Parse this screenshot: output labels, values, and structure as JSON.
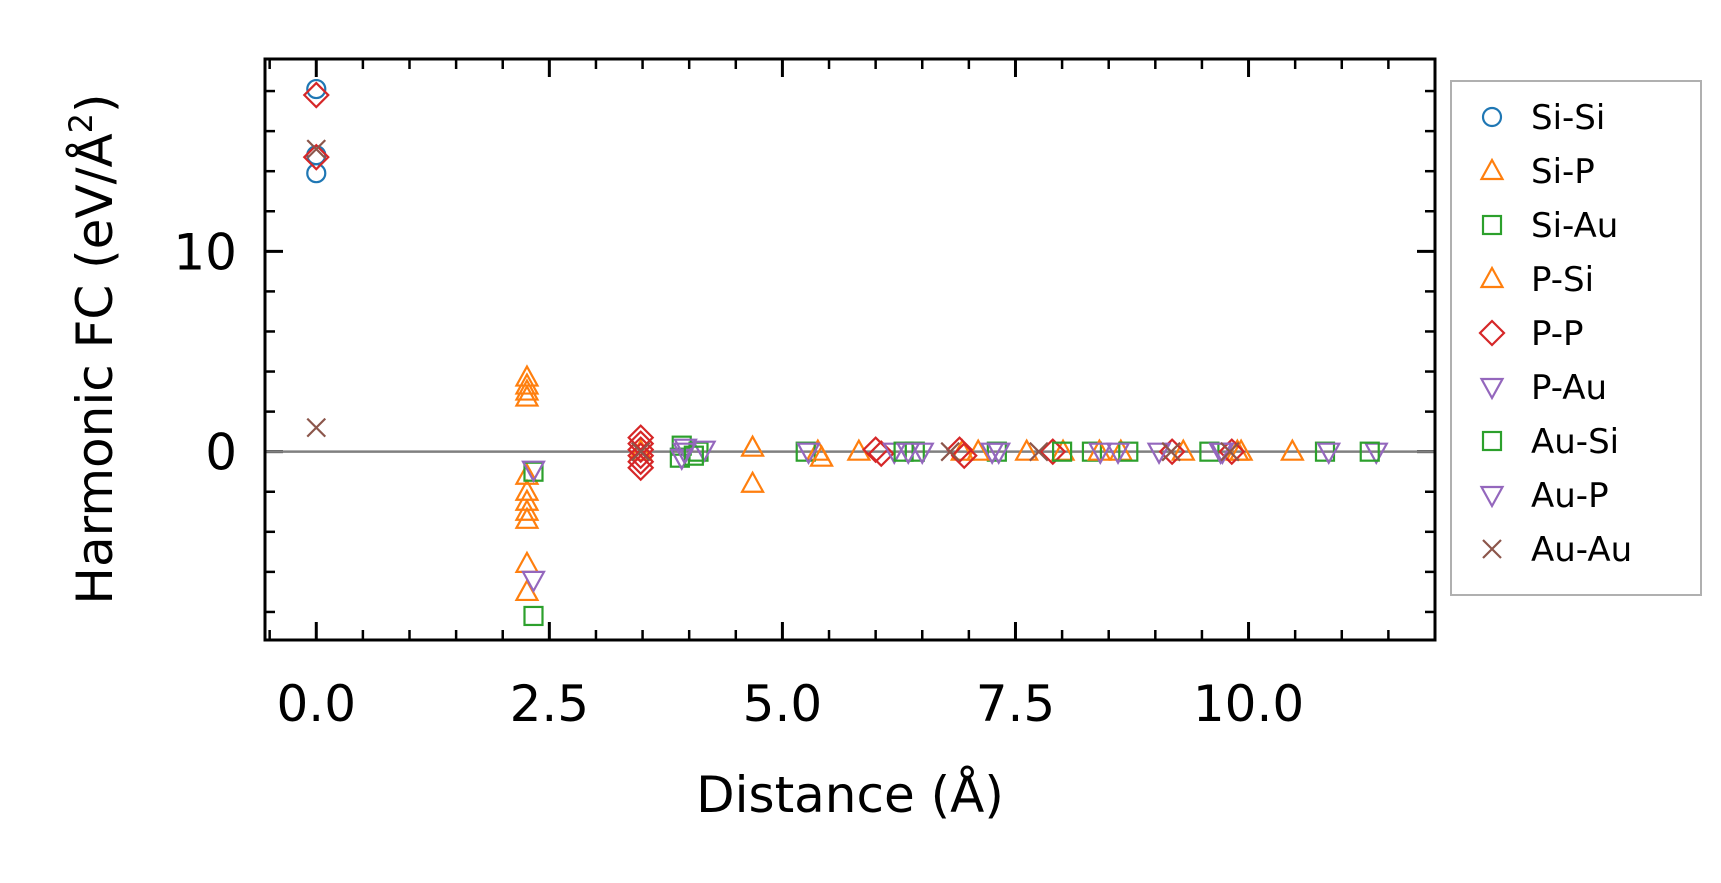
{
  "chart_data": {
    "type": "scatter",
    "title": "",
    "xlabel": "Distance (Å)",
    "ylabel": "Harmonic FC (eV/Å²)",
    "ylabel_parts": {
      "main": "Harmonic FC (eV/Å",
      "sup": "2",
      "end": ")"
    },
    "xlim": [
      -0.55,
      12.0
    ],
    "ylim": [
      -9.4,
      19.6
    ],
    "xticks": [
      0.0,
      2.5,
      5.0,
      7.5,
      10.0
    ],
    "xtick_labels": [
      "0.0",
      "2.5",
      "5.0",
      "7.5",
      "10.0"
    ],
    "yticks": [
      0,
      10
    ],
    "ytick_labels": [
      "0",
      "10"
    ],
    "x_minor_step": 0.5,
    "y_minor_step": 2,
    "zero_line": true,
    "grid": false,
    "legend_position": "right-outside",
    "series": [
      {
        "name": "Si-Si",
        "marker": "circle",
        "color": "#1f77b4",
        "points": [
          [
            0.0,
            18.1
          ],
          [
            0.0,
            13.9
          ],
          [
            0.0,
            14.8
          ]
        ]
      },
      {
        "name": "Si-P",
        "marker": "triangle-up",
        "color": "#ff7f0e",
        "points": [
          [
            2.26,
            3.7
          ],
          [
            2.26,
            3.3
          ],
          [
            2.26,
            3.0
          ],
          [
            2.26,
            2.7
          ],
          [
            2.26,
            -1.2
          ],
          [
            2.26,
            -2.0
          ],
          [
            2.26,
            -2.5
          ],
          [
            2.26,
            -3.0
          ],
          [
            2.26,
            -3.4
          ],
          [
            2.26,
            -5.6
          ],
          [
            2.26,
            -7.0
          ],
          [
            3.48,
            0.0
          ],
          [
            4.68,
            0.2
          ],
          [
            4.68,
            -1.6
          ],
          [
            5.38,
            0.0
          ],
          [
            5.82,
            0.0
          ],
          [
            6.93,
            0.0
          ],
          [
            7.62,
            0.0
          ],
          [
            8.01,
            0.0
          ],
          [
            8.63,
            0.0
          ],
          [
            9.88,
            0.0
          ],
          [
            10.47,
            0.0
          ]
        ]
      },
      {
        "name": "Si-Au",
        "marker": "square",
        "color": "#2ca02c",
        "points": [
          [
            2.33,
            -1.0
          ],
          [
            2.33,
            -8.2
          ],
          [
            3.9,
            -0.3
          ],
          [
            3.92,
            0.3
          ],
          [
            4.1,
            0.0
          ],
          [
            5.25,
            0.0
          ],
          [
            6.42,
            0.0
          ],
          [
            7.3,
            0.0
          ],
          [
            8.32,
            0.0
          ],
          [
            8.71,
            0.0
          ],
          [
            9.58,
            0.0
          ],
          [
            10.82,
            0.0
          ]
        ]
      },
      {
        "name": "P-Si",
        "marker": "triangle-up",
        "color": "#ff7f0e",
        "points": [
          [
            5.42,
            -0.3
          ],
          [
            7.1,
            0.0
          ],
          [
            8.4,
            0.0
          ],
          [
            9.3,
            0.0
          ],
          [
            9.92,
            0.0
          ]
        ]
      },
      {
        "name": "P-P",
        "marker": "diamond",
        "color": "#d62728",
        "points": [
          [
            0.0,
            17.8
          ],
          [
            0.0,
            14.7
          ],
          [
            3.48,
            0.7
          ],
          [
            3.48,
            0.4
          ],
          [
            3.48,
            0.1
          ],
          [
            3.48,
            -0.2
          ],
          [
            3.48,
            -0.5
          ],
          [
            3.48,
            -0.8
          ],
          [
            6.0,
            0.1
          ],
          [
            6.06,
            -0.1
          ],
          [
            6.9,
            0.1
          ],
          [
            6.95,
            -0.2
          ],
          [
            7.9,
            0.0
          ],
          [
            9.18,
            0.0
          ],
          [
            9.82,
            0.0
          ]
        ]
      },
      {
        "name": "P-Au",
        "marker": "triangle-down",
        "color": "#9467bd",
        "points": [
          [
            2.33,
            -0.9
          ],
          [
            2.33,
            -6.4
          ],
          [
            3.92,
            -0.3
          ],
          [
            3.96,
            0.2
          ],
          [
            4.16,
            0.1
          ],
          [
            5.28,
            0.0
          ],
          [
            6.2,
            0.0
          ],
          [
            6.5,
            0.0
          ],
          [
            7.32,
            0.0
          ],
          [
            8.41,
            0.0
          ],
          [
            9.04,
            0.0
          ],
          [
            9.72,
            0.0
          ],
          [
            10.86,
            0.0
          ],
          [
            11.37,
            0.0
          ]
        ]
      },
      {
        "name": "Au-Si",
        "marker": "square",
        "color": "#2ca02c",
        "points": [
          [
            4.05,
            -0.2
          ],
          [
            6.3,
            0.0
          ],
          [
            8.0,
            0.0
          ],
          [
            11.3,
            0.0
          ]
        ]
      },
      {
        "name": "Au-P",
        "marker": "triangle-down",
        "color": "#9467bd",
        "points": [
          [
            3.95,
            0.0
          ],
          [
            6.35,
            0.0
          ],
          [
            7.25,
            0.0
          ],
          [
            8.6,
            0.0
          ],
          [
            9.7,
            0.0
          ]
        ]
      },
      {
        "name": "Au-Au",
        "marker": "x",
        "color": "#8c564b",
        "points": [
          [
            0.0,
            1.2
          ],
          [
            0.0,
            15.1
          ],
          [
            3.48,
            0.0
          ],
          [
            6.8,
            0.0
          ],
          [
            7.75,
            0.0
          ],
          [
            9.17,
            0.0
          ],
          [
            9.8,
            0.0
          ]
        ]
      }
    ]
  }
}
